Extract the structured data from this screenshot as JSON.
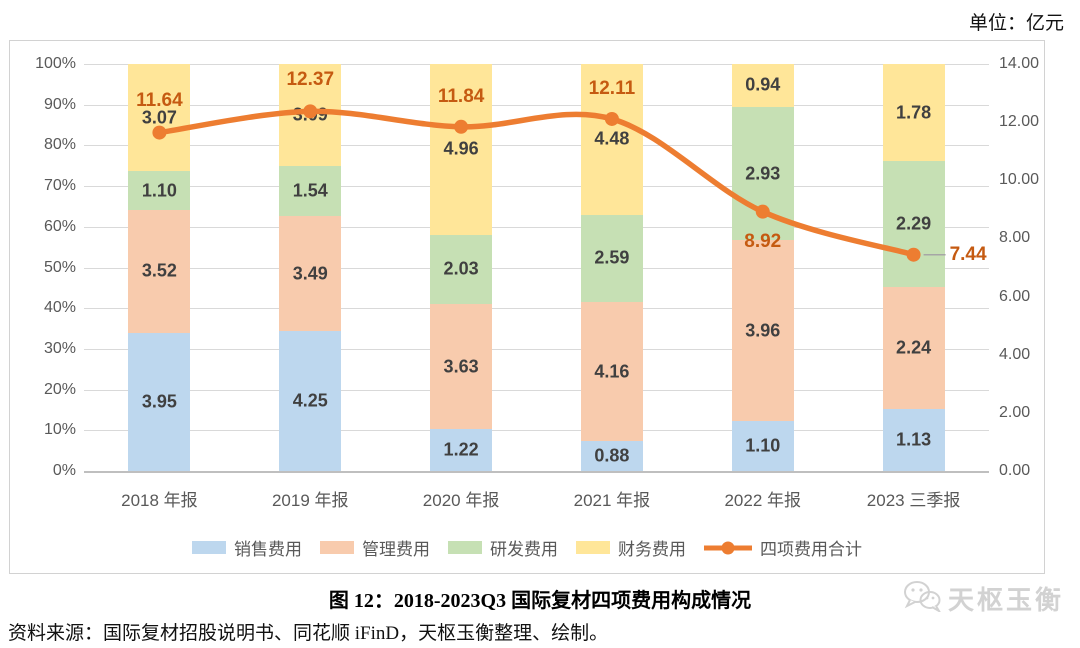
{
  "unit_label": "单位：亿元",
  "figure": {
    "title": "图 12：2018-2023Q3 国际复材四项费用构成情况",
    "source": "资料来源：国际复材招股说明书、同花顺 iFinD，天枢玉衡整理、绘制。",
    "watermark": "天枢玉衡"
  },
  "colors": {
    "sales": "#BDD7EE",
    "admin": "#F8CBAD",
    "rnd": "#C6E0B4",
    "finance": "#FFE699",
    "line": "#ED7D31",
    "line_label": "#C55A11",
    "segment_label": "#404040",
    "axis_text": "#595959",
    "grid": "#D9D9D9"
  },
  "chart_data": {
    "type": "bar",
    "subtype": "stacked-100pct-with-total-line",
    "title": "2018-2023Q3 国际复材四项费用构成情况",
    "categories": [
      "2018 年报",
      "2019 年报",
      "2020 年报",
      "2021 年报",
      "2022 年报",
      "2023 三季报"
    ],
    "series": [
      {
        "name": "销售费用",
        "color": "#BDD7EE",
        "values": [
          3.95,
          4.25,
          1.22,
          0.88,
          1.1,
          1.13
        ]
      },
      {
        "name": "管理费用",
        "color": "#F8CBAD",
        "values": [
          3.52,
          3.49,
          3.63,
          4.16,
          3.96,
          2.24
        ]
      },
      {
        "name": "研发费用",
        "color": "#C6E0B4",
        "values": [
          1.1,
          1.54,
          2.03,
          2.59,
          2.93,
          2.29
        ]
      },
      {
        "name": "财务费用",
        "color": "#FFE699",
        "values": [
          3.07,
          3.09,
          4.96,
          4.48,
          0.94,
          1.78
        ]
      }
    ],
    "line_series": {
      "name": "四项费用合计",
      "color": "#ED7D31",
      "axis": "right",
      "values": [
        11.64,
        12.37,
        11.84,
        12.11,
        8.92,
        7.44
      ]
    },
    "left_axis": {
      "ticks": [
        "100%",
        "90%",
        "80%",
        "70%",
        "60%",
        "50%",
        "40%",
        "30%",
        "20%",
        "10%",
        "0%"
      ],
      "min": 0,
      "max": 100
    },
    "right_axis": {
      "ticks": [
        "14.00",
        "12.00",
        "10.00",
        "8.00",
        "6.00",
        "4.00",
        "2.00",
        "0.00"
      ],
      "min": 0,
      "max": 14
    },
    "grid": true,
    "legend_position": "bottom"
  }
}
